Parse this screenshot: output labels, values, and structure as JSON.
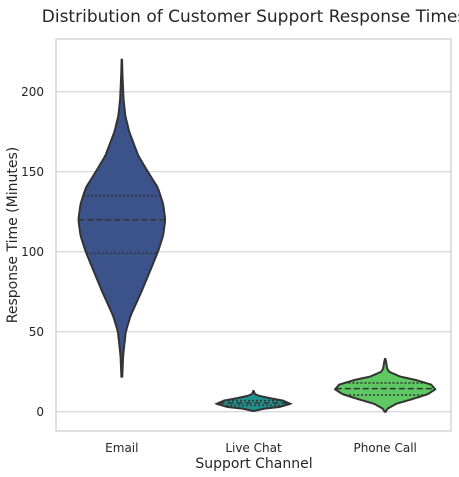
{
  "chart_data": {
    "type": "violin",
    "title": "Distribution of Customer Support Response Times",
    "xlabel": "Support Channel",
    "ylabel": "Response Time (Minutes)",
    "categories": [
      "Email",
      "Live Chat",
      "Phone Call"
    ],
    "colors": [
      "#3b528b",
      "#21918c",
      "#5ec962"
    ],
    "yticks": [
      0,
      50,
      100,
      150,
      200
    ],
    "ylim": [
      -12,
      233
    ],
    "grid": true,
    "violins": [
      {
        "name": "Email",
        "min": 22,
        "q1": 99,
        "median": 120,
        "q3": 135,
        "max": 220,
        "max_half_width_frac": 0.33,
        "profile": [
          [
            22,
            0.01
          ],
          [
            35,
            0.03
          ],
          [
            50,
            0.09
          ],
          [
            60,
            0.2
          ],
          [
            75,
            0.45
          ],
          [
            90,
            0.68
          ],
          [
            100,
            0.83
          ],
          [
            110,
            0.95
          ],
          [
            120,
            1.0
          ],
          [
            130,
            0.95
          ],
          [
            140,
            0.83
          ],
          [
            150,
            0.6
          ],
          [
            160,
            0.38
          ],
          [
            175,
            0.17
          ],
          [
            185,
            0.08
          ],
          [
            195,
            0.04
          ],
          [
            210,
            0.015
          ],
          [
            220,
            0.005
          ]
        ]
      },
      {
        "name": "Live Chat",
        "min": 0.5,
        "q1": 4,
        "median": 5.5,
        "q3": 7,
        "max": 13,
        "max_half_width_frac": 0.28,
        "profile": [
          [
            0.5,
            0.01
          ],
          [
            2,
            0.3
          ],
          [
            3,
            0.7
          ],
          [
            5,
            1.0
          ],
          [
            7,
            0.8
          ],
          [
            8.5,
            0.45
          ],
          [
            10,
            0.15
          ],
          [
            11,
            0.05
          ],
          [
            12,
            0.02
          ],
          [
            13,
            0.005
          ]
        ]
      },
      {
        "name": "Phone Call",
        "min": 0,
        "q1": 10.5,
        "median": 14.5,
        "q3": 18,
        "max": 33,
        "max_half_width_frac": 0.38,
        "profile": [
          [
            0,
            0.01
          ],
          [
            2,
            0.05
          ],
          [
            5,
            0.22
          ],
          [
            8,
            0.55
          ],
          [
            11,
            0.85
          ],
          [
            14,
            1.0
          ],
          [
            17,
            0.92
          ],
          [
            20,
            0.6
          ],
          [
            22,
            0.3
          ],
          [
            25,
            0.08
          ],
          [
            27,
            0.04
          ],
          [
            29,
            0.03
          ],
          [
            31,
            0.02
          ],
          [
            33,
            0.005
          ]
        ]
      }
    ]
  }
}
